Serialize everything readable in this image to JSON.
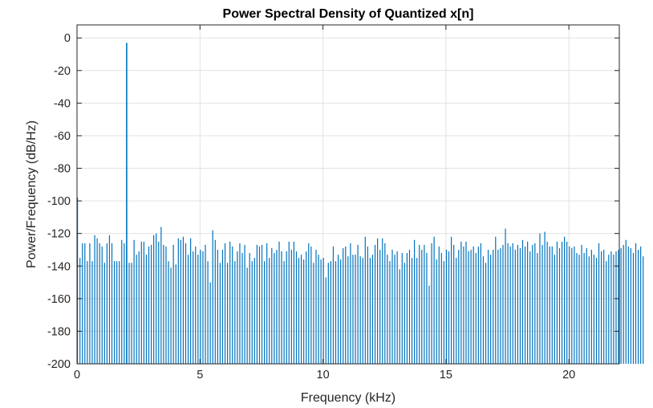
{
  "chart_data": {
    "type": "bar",
    "title": "Power Spectral Density of Quantized x[n]",
    "xlabel": "Frequency (kHz)",
    "ylabel": "Power/Frequency (dB/Hz)",
    "xlim": [
      0,
      22.05
    ],
    "ylim": [
      -200,
      8
    ],
    "xticks": [
      0,
      5,
      10,
      15,
      20
    ],
    "yticks": [
      0,
      -20,
      -40,
      -60,
      -80,
      -100,
      -120,
      -140,
      -160,
      -180,
      -200
    ],
    "grid": true,
    "series_color": "#0072BD",
    "grid_color": "#e2e2e2",
    "x_step": 0.1,
    "peak": {
      "x": 2.0,
      "y": -3
    },
    "values": [
      -98,
      -135,
      -126,
      -126,
      -137,
      -126,
      -137,
      -121,
      -123,
      -126,
      -128,
      -138,
      -126,
      -121,
      -126,
      -137,
      -137,
      -137,
      -124,
      -126,
      -128,
      -138,
      -138,
      -124,
      -133,
      -131,
      -125,
      -125,
      -133,
      -128,
      -127,
      -121,
      -120,
      -125,
      -116,
      -127,
      -128,
      -137,
      -141,
      -127,
      -139,
      -123,
      -124,
      -122,
      -126,
      -133,
      -123,
      -131,
      -128,
      -133,
      -130,
      -131,
      -127,
      -137,
      -150,
      -118,
      -124,
      -130,
      -138,
      -130,
      -126,
      -138,
      -125,
      -128,
      -137,
      -131,
      -126,
      -132,
      -127,
      -141,
      -132,
      -137,
      -135,
      -127,
      -128,
      -127,
      -137,
      -126,
      -135,
      -129,
      -132,
      -130,
      -125,
      -131,
      -137,
      -131,
      -125,
      -130,
      -125,
      -131,
      -135,
      -133,
      -136,
      -131,
      -126,
      -128,
      -138,
      -130,
      -133,
      -136,
      -135,
      -147,
      -138,
      -137,
      -128,
      -137,
      -133,
      -136,
      -129,
      -128,
      -134,
      -126,
      -133,
      -133,
      -127,
      -134,
      -135,
      -122,
      -128,
      -135,
      -133,
      -127,
      -123,
      -130,
      -123,
      -126,
      -133,
      -137,
      -130,
      -133,
      -131,
      -142,
      -132,
      -138,
      -132,
      -130,
      -135,
      -124,
      -135,
      -127,
      -130,
      -127,
      -132,
      -152,
      -126,
      -122,
      -136,
      -128,
      -132,
      -137,
      -130,
      -131,
      -122,
      -127,
      -135,
      -130,
      -125,
      -128,
      -125,
      -131,
      -130,
      -128,
      -132,
      -128,
      -126,
      -134,
      -138,
      -130,
      -133,
      -130,
      -122,
      -130,
      -129,
      -127,
      -117,
      -126,
      -128,
      -126,
      -130,
      -127,
      -129,
      -124,
      -128,
      -125,
      -131,
      -127,
      -126,
      -132,
      -120,
      -127,
      -119,
      -125,
      -128,
      -128,
      -133,
      -125,
      -129,
      -125,
      -122,
      -125,
      -128,
      -129,
      -128,
      -132,
      -133,
      -127,
      -132,
      -129,
      -134,
      -130,
      -133,
      -135,
      -126,
      -131,
      -130,
      -137,
      -133,
      -131,
      -133,
      -131,
      -130,
      -129,
      -127,
      -124,
      -128,
      -129,
      -132,
      -126,
      -130,
      -128,
      -134
    ]
  }
}
